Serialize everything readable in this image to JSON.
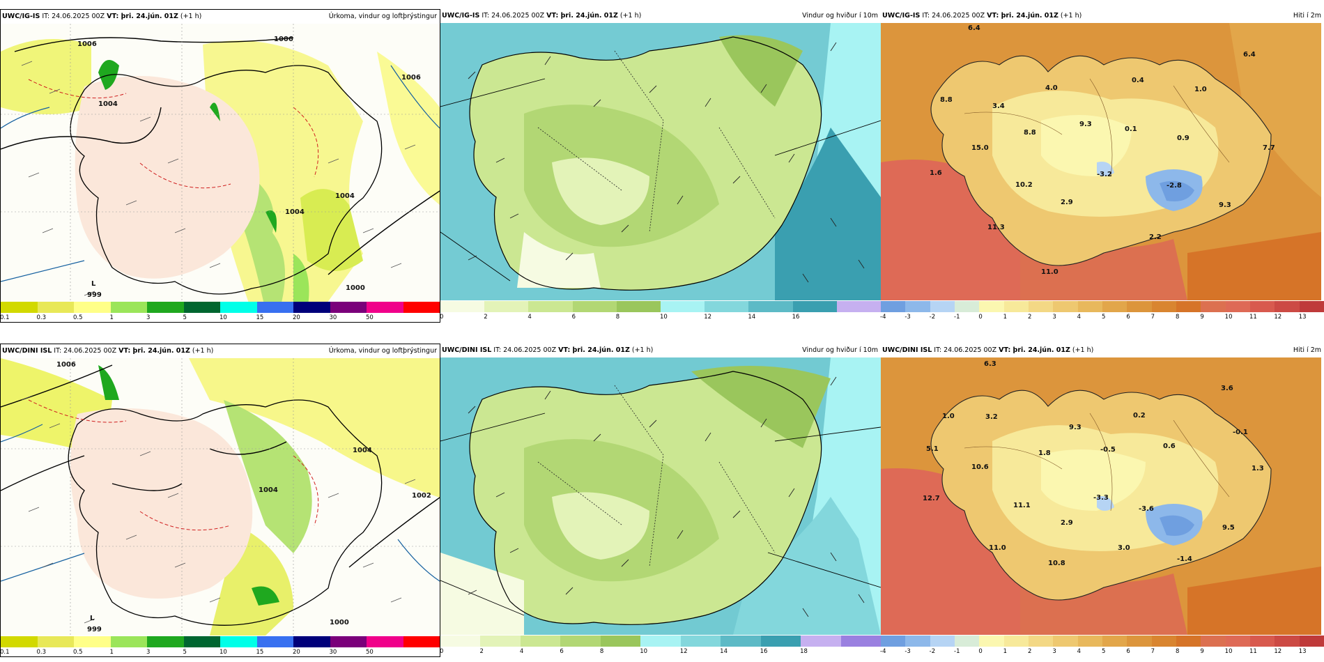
{
  "rows": [
    {
      "model": "UWC/IG-IS",
      "time_text": " IT: 24.06.2025 00Z ",
      "vt_label": "VT:",
      "vt_value": " þri. 24.jún. 01Z",
      "lead": " (+1 h)",
      "panels": {
        "precip": {
          "title": "Úrkoma, vindur og loftþrýstingur",
          "isobar_labels": [
            "1006",
            "1006",
            "1004",
            "1004",
            "1004",
            "1006",
            "1000"
          ],
          "low": {
            "letter": "L",
            "value": "999"
          }
        },
        "wind": {
          "title": "Vindur og hviður í 10m"
        },
        "temp": {
          "title": "Hiti í 2m",
          "values": [
            "6.4",
            "8.8",
            "3.4",
            "4.0",
            "9.3",
            "0.4",
            "1.0",
            "6.4",
            "8.8",
            "15.0",
            "0.1",
            "0.9",
            "7.7",
            "1.6",
            "-3.2",
            "-2.8",
            "10.2",
            "2.9",
            "9.3",
            "11.3",
            "2.2",
            "11.0"
          ]
        }
      }
    },
    {
      "model": "UWC/DINI ISL",
      "time_text": " IT: 24.06.2025 00Z ",
      "vt_label": "VT:",
      "vt_value": " þri. 24.jún. 01Z",
      "lead": " (+1 h)",
      "panels": {
        "precip": {
          "title": "Úrkoma, vindur og loftþrýstingur",
          "isobar_labels": [
            "1006",
            "1004",
            "1004",
            "1002",
            "1000"
          ],
          "low": {
            "letter": "L",
            "value": "999"
          }
        },
        "wind": {
          "title": "Vindur og hviður í 10m"
        },
        "temp": {
          "title": "Hiti í 2m",
          "values": [
            "6.3",
            "1.0",
            "3.2",
            "9.3",
            "0.2",
            "3.6",
            "5.1",
            "1.8",
            "-0.5",
            "0.6",
            "-0.1",
            "10.6",
            "1.3",
            "12.7",
            "-3.3",
            "11.1",
            "-3.6",
            "2.9",
            "9.5",
            "11.0",
            "3.0",
            "-1.4",
            "10.8"
          ]
        }
      }
    }
  ],
  "colorbars": {
    "precip": {
      "tick_labels": [
        "0.1",
        "0.3",
        "0.5",
        "1",
        "3",
        "5",
        "10",
        "15",
        "20",
        "30",
        "50"
      ],
      "colors": [
        "#d2d900",
        "#e8e858",
        "#ffff88",
        "#9be55a",
        "#1fa81f",
        "#006630",
        "#00ffe8",
        "#3870f0",
        "#00007a",
        "#7a007a",
        "#f0008a",
        "#ff0000"
      ]
    },
    "wind_top": {
      "tick_labels": [
        "0",
        "2",
        "4",
        "6",
        "8",
        "10",
        "12",
        "14",
        "16"
      ],
      "colors": [
        "#f6fbe2",
        "#e3f3b8",
        "#cbe792",
        "#b2d774",
        "#9ac65c",
        "#a8f3f3",
        "#83d7dc",
        "#5dbac6",
        "#3a9fb0",
        "#c6b0f0"
      ]
    },
    "wind_bottom": {
      "tick_labels": [
        "0",
        "2",
        "4",
        "6",
        "8",
        "10",
        "12",
        "14",
        "16",
        "18"
      ],
      "colors": [
        "#f6fbe2",
        "#e3f3b8",
        "#cbe792",
        "#b2d774",
        "#9ac65c",
        "#a8f3f3",
        "#83d7dc",
        "#5dbac6",
        "#3a9fb0",
        "#c6b0f0",
        "#9a80e0"
      ]
    },
    "temp": {
      "tick_labels": [
        "-4",
        "-3",
        "-2",
        "-1",
        "0",
        "1",
        "2",
        "3",
        "4",
        "5",
        "6",
        "7",
        "8",
        "9",
        "10",
        "11",
        "12",
        "13"
      ],
      "colors": [
        "#6f9fe0",
        "#8db8ea",
        "#b6d4f4",
        "#d8ecd8",
        "#fbf7b0",
        "#f7e99a",
        "#f3d885",
        "#eec870",
        "#e8b85c",
        "#e2a64a",
        "#dc953c",
        "#d98530",
        "#d67428",
        "#dc7050",
        "#de6a56",
        "#d85a4e",
        "#cc4a44",
        "#bf3a3a"
      ]
    }
  }
}
